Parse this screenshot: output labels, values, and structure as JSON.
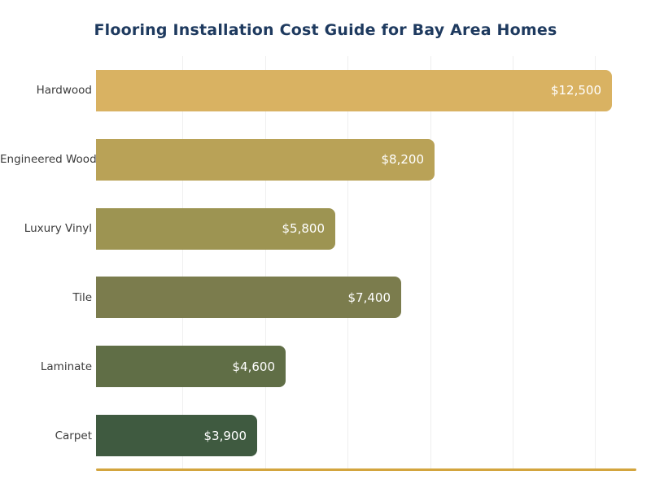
{
  "chart_data": {
    "type": "bar",
    "orientation": "horizontal",
    "title": "Flooring Installation Cost Guide for Bay Area Homes",
    "categories": [
      "Hardwood",
      "Engineered Wood",
      "Luxury Vinyl",
      "Tile",
      "Laminate",
      "Carpet"
    ],
    "values": [
      12500,
      8200,
      5800,
      7400,
      4600,
      3900
    ],
    "value_labels": [
      "$12,500",
      "$8,200",
      "$5,800",
      "$7,400",
      "$4,600",
      "$3,900"
    ],
    "bar_colors": [
      "#d9b262",
      "#b9a257",
      "#9d9452",
      "#7b7c4d",
      "#606e46",
      "#3f5a40"
    ],
    "xlim": [
      0,
      13000
    ],
    "gridline_interval": 2000,
    "grid": "vertical-light",
    "legend": "none",
    "xlabel": "",
    "ylabel": "",
    "colors": {
      "title": "#1e3a5f",
      "category_label": "#3b3b3b",
      "value_label": "#ffffff",
      "gridline": "#efefef",
      "baseline": "#d3a53e",
      "background": "#ffffff"
    }
  }
}
